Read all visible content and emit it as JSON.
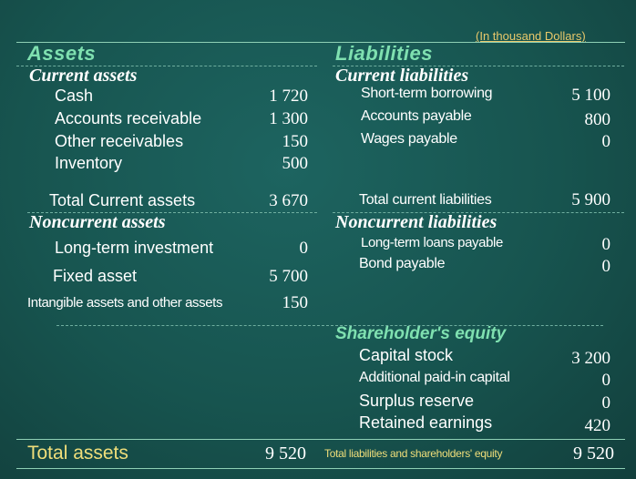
{
  "unit_note": "(In thousand Dollars)",
  "assets": {
    "title": "Assets",
    "current": {
      "heading": "Current assets",
      "items": [
        {
          "label": "Cash",
          "value": "1 720"
        },
        {
          "label": "Accounts receivable",
          "value": "1 300"
        },
        {
          "label": "Other receivables",
          "value": "150"
        },
        {
          "label": "Inventory",
          "value": "500"
        }
      ],
      "total_label": "Total Current assets",
      "total_value": "3 670"
    },
    "noncurrent": {
      "heading": "Noncurrent assets",
      "items": [
        {
          "label": "Long-term investment",
          "value": "0"
        },
        {
          "label": "Fixed asset",
          "value": "5 700"
        },
        {
          "label": "Intangible assets and other assets",
          "value": "150"
        }
      ]
    },
    "total_label": "Total assets",
    "total_value": "9 520"
  },
  "liabilities": {
    "title": "Liabilities",
    "current": {
      "heading": "Current liabilities",
      "items": [
        {
          "label": "Short-term borrowing",
          "value": "5 100"
        },
        {
          "label": "Accounts payable",
          "value": "800"
        },
        {
          "label": "Wages payable",
          "value": "0"
        }
      ],
      "total_label": "Total current liabilities",
      "total_value": "5 900"
    },
    "noncurrent": {
      "heading": "Noncurrent liabilities",
      "items": [
        {
          "label": "Long-term loans payable",
          "value": "0"
        },
        {
          "label": "Bond payable",
          "value": "0"
        }
      ]
    }
  },
  "equity": {
    "heading": "Shareholder's equity",
    "items": [
      {
        "label": "Capital stock",
        "value": "3 200"
      },
      {
        "label": "Additional paid-in capital",
        "value": "0"
      },
      {
        "label": "Surplus reserve",
        "value": "0"
      },
      {
        "label": "Retained earnings",
        "value": "420"
      }
    ]
  },
  "total_liab_equity_label": "Total liabilities and shareholders' equity",
  "total_liab_equity_value": "9 520"
}
